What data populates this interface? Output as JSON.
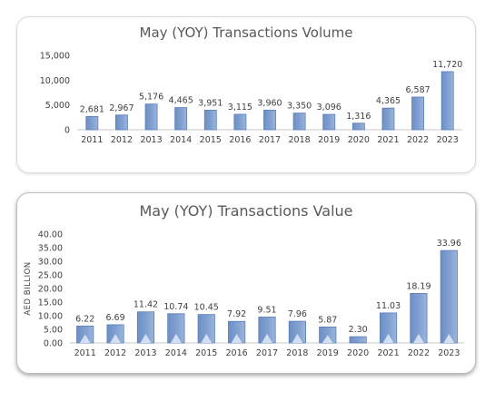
{
  "chart_data": [
    {
      "type": "bar",
      "title": "May (YOY) Transactions Volume",
      "xlabel": "",
      "ylabel": "",
      "categories": [
        "2011",
        "2012",
        "2013",
        "2014",
        "2015",
        "2016",
        "2017",
        "2018",
        "2019",
        "2020",
        "2021",
        "2022",
        "2023"
      ],
      "values": [
        2681,
        2967,
        5176,
        4465,
        3951,
        3115,
        3960,
        3350,
        3096,
        1316,
        4365,
        6587,
        11720
      ],
      "value_labels": [
        "2,681",
        "2,967",
        "5,176",
        "4,465",
        "3,951",
        "3,115",
        "3,960",
        "3,350",
        "3,096",
        "1,316",
        "4,365",
        "6,587",
        "11,720"
      ],
      "ylim": [
        0,
        15000
      ],
      "yticks": [
        0,
        5000,
        10000,
        15000
      ],
      "ytick_labels": [
        "0",
        "5,000",
        "10,000",
        "15,000"
      ],
      "grid": false,
      "bar_color": "#7f9fd0"
    },
    {
      "type": "bar",
      "title": "May (YOY) Transactions Value",
      "xlabel": "",
      "ylabel": "AED BILLION",
      "categories": [
        "2011",
        "2012",
        "2013",
        "2014",
        "2015",
        "2016",
        "2017",
        "2018",
        "2019",
        "2020",
        "2021",
        "2022",
        "2023"
      ],
      "values": [
        6.22,
        6.69,
        11.42,
        10.74,
        10.45,
        7.92,
        9.51,
        7.96,
        5.87,
        2.3,
        11.03,
        18.19,
        33.96
      ],
      "value_labels": [
        "6.22",
        "6.69",
        "11.42",
        "10.74",
        "10.45",
        "7.92",
        "9.51",
        "7.96",
        "5.87",
        "2.30",
        "11.03",
        "18.19",
        "33.96"
      ],
      "ylim": [
        0,
        40
      ],
      "yticks": [
        0,
        5,
        10,
        15,
        20,
        25,
        30,
        35,
        40
      ],
      "ytick_labels": [
        "0.00",
        "5.00",
        "10.00",
        "15.00",
        "20.00",
        "25.00",
        "30.00",
        "35.00",
        "40.00"
      ],
      "grid": false,
      "bar_color": "#7f9fd0"
    }
  ]
}
